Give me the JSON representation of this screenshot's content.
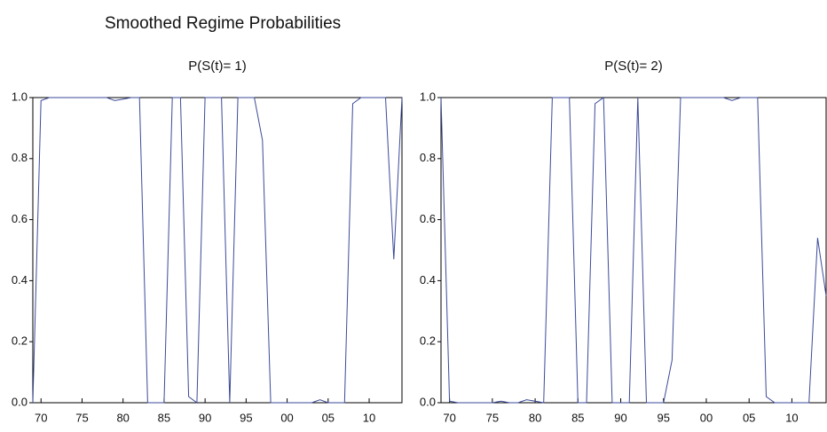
{
  "title": "Smoothed Regime Probabilities",
  "chart_data": [
    {
      "type": "line",
      "title": "P(S(t)= 1)",
      "color": "#3b4a99",
      "x": [
        1969,
        1970,
        1971,
        1972,
        1973,
        1974,
        1975,
        1976,
        1977,
        1978,
        1979,
        1980,
        1981,
        1982,
        1983,
        1984,
        1985,
        1986,
        1987,
        1988,
        1989,
        1990,
        1991,
        1992,
        1993,
        1994,
        1995,
        1996,
        1997,
        1998,
        1999,
        2000,
        2001,
        2002,
        2003,
        2004,
        2005,
        2006,
        2007,
        2008,
        2009,
        2010,
        2011,
        2012,
        2013,
        2014
      ],
      "values": [
        0,
        0.99,
        1,
        1,
        1,
        1,
        1,
        1,
        1,
        1,
        0.99,
        0.995,
        1,
        1,
        0,
        0,
        0,
        1,
        1,
        0.02,
        0,
        1,
        1,
        1,
        0,
        1,
        1,
        1,
        0.86,
        0,
        0,
        0,
        0,
        0,
        0,
        0.01,
        0,
        0,
        0,
        0.98,
        1,
        1,
        1,
        1,
        0.47,
        1
      ],
      "xlim": [
        1969,
        2014
      ],
      "xticks": [
        {
          "value": 1970,
          "label": "70"
        },
        {
          "value": 1975,
          "label": "75"
        },
        {
          "value": 1980,
          "label": "80"
        },
        {
          "value": 1985,
          "label": "85"
        },
        {
          "value": 1990,
          "label": "90"
        },
        {
          "value": 1995,
          "label": "95"
        },
        {
          "value": 2000,
          "label": "00"
        },
        {
          "value": 2005,
          "label": "05"
        },
        {
          "value": 2010,
          "label": "10"
        }
      ],
      "ylim": [
        0,
        1
      ],
      "yticks": [
        {
          "value": 0,
          "label": "0.0"
        },
        0.2,
        0.4,
        0.6,
        0.8,
        {
          "value": 1,
          "label": "1.0"
        }
      ]
    },
    {
      "type": "line",
      "title": "P(S(t)= 2)",
      "color": "#3b4a99",
      "x": [
        1969,
        1970,
        1971,
        1972,
        1973,
        1974,
        1975,
        1976,
        1977,
        1978,
        1979,
        1980,
        1981,
        1982,
        1983,
        1984,
        1985,
        1986,
        1987,
        1988,
        1989,
        1990,
        1991,
        1992,
        1993,
        1994,
        1995,
        1996,
        1997,
        1998,
        1999,
        2000,
        2001,
        2002,
        2003,
        2004,
        2005,
        2006,
        2007,
        2008,
        2009,
        2010,
        2011,
        2012,
        2013,
        2014
      ],
      "values": [
        1,
        0.005,
        0,
        0,
        0,
        0,
        0,
        0.005,
        0,
        0,
        0.01,
        0.005,
        0,
        1,
        1,
        1,
        0,
        0,
        0.98,
        1,
        0,
        0,
        0,
        1,
        0,
        0,
        0,
        0.14,
        1,
        1,
        1,
        1,
        1,
        1,
        0.99,
        1,
        1,
        1,
        0.02,
        0,
        0,
        0,
        0,
        0,
        0.54,
        0.35
      ],
      "xlim": [
        1969,
        2014
      ],
      "xticks": [
        {
          "value": 1970,
          "label": "70"
        },
        {
          "value": 1975,
          "label": "75"
        },
        {
          "value": 1980,
          "label": "80"
        },
        {
          "value": 1985,
          "label": "85"
        },
        {
          "value": 1990,
          "label": "90"
        },
        {
          "value": 1995,
          "label": "95"
        },
        {
          "value": 2000,
          "label": "00"
        },
        {
          "value": 2005,
          "label": "05"
        },
        {
          "value": 2010,
          "label": "10"
        }
      ],
      "ylim": [
        0,
        1
      ],
      "yticks": [
        {
          "value": 0,
          "label": "0.0"
        },
        0.2,
        0.4,
        0.6,
        0.8,
        {
          "value": 1,
          "label": "1.0"
        }
      ]
    }
  ]
}
